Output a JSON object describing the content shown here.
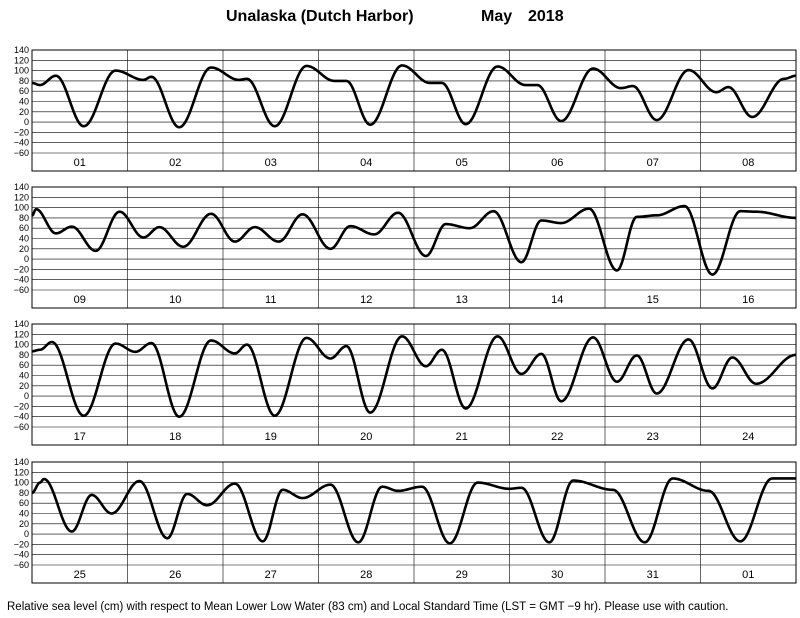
{
  "header": {
    "location": "Unalaska (Dutch Harbor)",
    "month": "May",
    "year": "2018"
  },
  "footer": {
    "note": "Relative sea level (cm) with respect to Mean Lower Low Water (83 cm) and Local Standard Time (LST = GMT −9 hr). Please use with caution."
  },
  "chart_data": {
    "type": "line",
    "title": "Unalaska (Dutch Harbor)   May   2018",
    "xlabel": "",
    "ylabel": "",
    "units": "cm",
    "ylim": [
      -60,
      140
    ],
    "yticks": [
      -60,
      -40,
      -20,
      0,
      20,
      40,
      60,
      80,
      100,
      120,
      140
    ],
    "ytick_labels": [
      "−60",
      "−40",
      "−20",
      "0",
      "20",
      "40",
      "60",
      "80",
      "100",
      "120",
      "140"
    ],
    "grid": true,
    "panels": [
      {
        "days": [
          "01",
          "02",
          "03",
          "04",
          "05",
          "06",
          "07",
          "08"
        ],
        "extrema": [
          [
            0,
            76
          ],
          [
            2,
            72
          ],
          [
            6,
            90
          ],
          [
            13,
            -8
          ],
          [
            21,
            100
          ],
          [
            28,
            82
          ],
          [
            30,
            88
          ],
          [
            37,
            -10
          ],
          [
            45,
            106
          ],
          [
            52,
            82
          ],
          [
            54,
            84
          ],
          [
            61,
            -8
          ],
          [
            69,
            109
          ],
          [
            76,
            80
          ],
          [
            79,
            80
          ],
          [
            85,
            -5
          ],
          [
            93,
            110
          ],
          [
            100,
            76
          ],
          [
            103,
            76
          ],
          [
            109,
            -4
          ],
          [
            117,
            108
          ],
          [
            124,
            72
          ],
          [
            127,
            72
          ],
          [
            133,
            2
          ],
          [
            141,
            104
          ],
          [
            148,
            66
          ],
          [
            151,
            70
          ],
          [
            157,
            4
          ],
          [
            165,
            101
          ],
          [
            172,
            58
          ],
          [
            175,
            68
          ],
          [
            181,
            10
          ],
          [
            189,
            84
          ],
          [
            192,
            90
          ]
        ]
      },
      {
        "days": [
          "09",
          "10",
          "11",
          "12",
          "13",
          "14",
          "15",
          "16"
        ],
        "extrema": [
          [
            0,
            84
          ],
          [
            1,
            97
          ],
          [
            6,
            50
          ],
          [
            10,
            63
          ],
          [
            16,
            16
          ],
          [
            22,
            92
          ],
          [
            28,
            42
          ],
          [
            32,
            62
          ],
          [
            38,
            24
          ],
          [
            45,
            88
          ],
          [
            51,
            34
          ],
          [
            56,
            62
          ],
          [
            62,
            34
          ],
          [
            68,
            87
          ],
          [
            75,
            20
          ],
          [
            80,
            64
          ],
          [
            86,
            48
          ],
          [
            92,
            90
          ],
          [
            99,
            6
          ],
          [
            104,
            68
          ],
          [
            110,
            60
          ],
          [
            116,
            93
          ],
          [
            123,
            -6
          ],
          [
            128,
            75
          ],
          [
            133,
            70
          ],
          [
            140,
            98
          ],
          [
            147,
            -22
          ],
          [
            152,
            82
          ],
          [
            157,
            85
          ],
          [
            164,
            103
          ],
          [
            171,
            -30
          ],
          [
            178,
            93
          ],
          [
            182,
            92
          ],
          [
            192,
            80
          ]
        ]
      },
      {
        "days": [
          "17",
          "18",
          "19",
          "20",
          "21",
          "22",
          "23",
          "24"
        ],
        "extrema": [
          [
            0,
            87
          ],
          [
            2,
            90
          ],
          [
            5,
            105
          ],
          [
            13,
            -38
          ],
          [
            21,
            102
          ],
          [
            26,
            86
          ],
          [
            30,
            103
          ],
          [
            37,
            -40
          ],
          [
            45,
            108
          ],
          [
            51,
            83
          ],
          [
            54,
            100
          ],
          [
            61,
            -38
          ],
          [
            69,
            113
          ],
          [
            75,
            73
          ],
          [
            79,
            97
          ],
          [
            85,
            -32
          ],
          [
            93,
            116
          ],
          [
            99,
            58
          ],
          [
            103,
            90
          ],
          [
            109,
            -24
          ],
          [
            117,
            116
          ],
          [
            123,
            43
          ],
          [
            128,
            82
          ],
          [
            133,
            -10
          ],
          [
            141,
            114
          ],
          [
            147,
            28
          ],
          [
            152,
            79
          ],
          [
            157,
            5
          ],
          [
            165,
            110
          ],
          [
            171,
            15
          ],
          [
            176,
            75
          ],
          [
            182,
            24
          ],
          [
            192,
            80
          ]
        ]
      },
      {
        "days": [
          "25",
          "26",
          "27",
          "28",
          "29",
          "30",
          "31",
          "01"
        ],
        "extrema": [
          [
            0,
            80
          ],
          [
            2,
            100
          ],
          [
            3,
            107
          ],
          [
            10,
            5
          ],
          [
            15,
            76
          ],
          [
            20,
            40
          ],
          [
            27,
            103
          ],
          [
            34,
            -8
          ],
          [
            39,
            78
          ],
          [
            44,
            56
          ],
          [
            51,
            98
          ],
          [
            58,
            -14
          ],
          [
            63,
            86
          ],
          [
            68,
            70
          ],
          [
            75,
            96
          ],
          [
            82,
            -16
          ],
          [
            88,
            92
          ],
          [
            92,
            84
          ],
          [
            98,
            92
          ],
          [
            105,
            -18
          ],
          [
            112,
            100
          ],
          [
            120,
            88
          ],
          [
            123,
            90
          ],
          [
            130,
            -16
          ],
          [
            136,
            104
          ],
          [
            146,
            86
          ],
          [
            154,
            -16
          ],
          [
            161,
            108
          ],
          [
            170,
            84
          ],
          [
            178,
            -14
          ],
          [
            186,
            108
          ],
          [
            192,
            108
          ]
        ]
      }
    ]
  }
}
